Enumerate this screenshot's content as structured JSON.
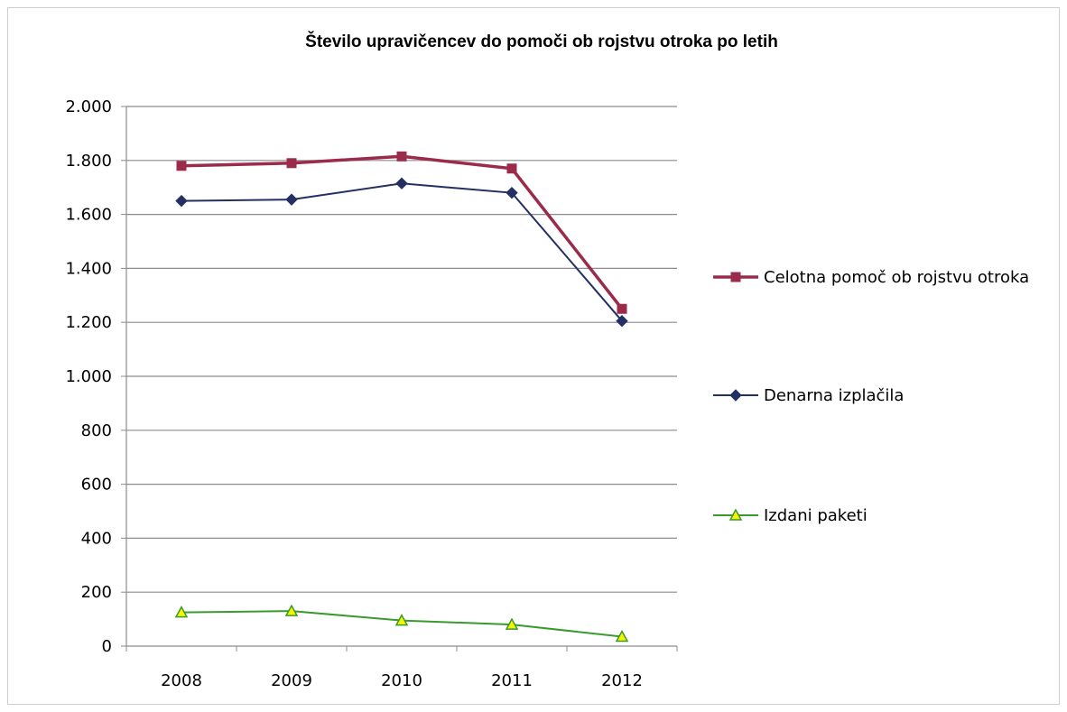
{
  "chart_data": {
    "type": "line",
    "title": "Število upravičencev do pomoči ob rojstvu otroka po letih",
    "xlabel": "",
    "ylabel": "",
    "categories": [
      "2008",
      "2009",
      "2010",
      "2011",
      "2012"
    ],
    "ylim": [
      0,
      2000
    ],
    "yticks": [
      0,
      200,
      400,
      600,
      800,
      1000,
      1200,
      1400,
      1600,
      1800,
      2000
    ],
    "ytick_labels": [
      "0",
      "200",
      "400",
      "600",
      "800",
      "1.000",
      "1.200",
      "1.400",
      "1.600",
      "1.800",
      "2.000"
    ],
    "grid": true,
    "legend_position": "right",
    "series": [
      {
        "name": "Celotna pomoč ob rojstvu otroka",
        "values": [
          1780,
          1790,
          1815,
          1770,
          1250
        ],
        "color": "#9b2b4b",
        "marker": "square"
      },
      {
        "name": "Denarna izplačila",
        "values": [
          1650,
          1655,
          1715,
          1680,
          1205
        ],
        "color": "#243063",
        "marker": "diamond"
      },
      {
        "name": "Izdani paketi",
        "values": [
          125,
          130,
          95,
          80,
          35
        ],
        "color": "#3a9a2e",
        "marker": "triangle",
        "marker_fill": "#f5f500"
      }
    ]
  }
}
